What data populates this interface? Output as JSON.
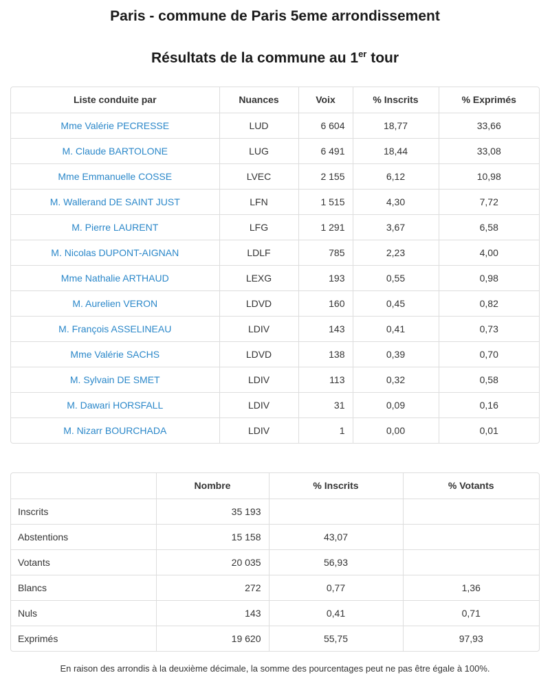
{
  "header": {
    "title": "Paris - commune de Paris 5eme arrondissement",
    "subtitle_prefix": "Résultats de la commune au 1",
    "subtitle_sup": "er",
    "subtitle_suffix": " tour"
  },
  "colors": {
    "link_blue": "#2a87c9",
    "border_gray": "#dddddd",
    "text": "#333333"
  },
  "tables": {
    "candidates": {
      "headers": [
        "Liste conduite par",
        "Nuances",
        "Voix",
        "% Inscrits",
        "% Exprimés"
      ],
      "rows": [
        {
          "name": "Mme Valérie PECRESSE",
          "nuance": "LUD",
          "voix": "6 604",
          "pct_inscrits": "18,77",
          "pct_exprimes": "33,66"
        },
        {
          "name": "M. Claude BARTOLONE",
          "nuance": "LUG",
          "voix": "6 491",
          "pct_inscrits": "18,44",
          "pct_exprimes": "33,08"
        },
        {
          "name": "Mme Emmanuelle COSSE",
          "nuance": "LVEC",
          "voix": "2 155",
          "pct_inscrits": "6,12",
          "pct_exprimes": "10,98"
        },
        {
          "name": "M. Wallerand DE SAINT JUST",
          "nuance": "LFN",
          "voix": "1 515",
          "pct_inscrits": "4,30",
          "pct_exprimes": "7,72"
        },
        {
          "name": "M. Pierre LAURENT",
          "nuance": "LFG",
          "voix": "1 291",
          "pct_inscrits": "3,67",
          "pct_exprimes": "6,58"
        },
        {
          "name": "M. Nicolas DUPONT-AIGNAN",
          "nuance": "LDLF",
          "voix": "785",
          "pct_inscrits": "2,23",
          "pct_exprimes": "4,00"
        },
        {
          "name": "Mme Nathalie ARTHAUD",
          "nuance": "LEXG",
          "voix": "193",
          "pct_inscrits": "0,55",
          "pct_exprimes": "0,98"
        },
        {
          "name": "M. Aurelien VERON",
          "nuance": "LDVD",
          "voix": "160",
          "pct_inscrits": "0,45",
          "pct_exprimes": "0,82"
        },
        {
          "name": "M. François ASSELINEAU",
          "nuance": "LDIV",
          "voix": "143",
          "pct_inscrits": "0,41",
          "pct_exprimes": "0,73"
        },
        {
          "name": "Mme Valérie SACHS",
          "nuance": "LDVD",
          "voix": "138",
          "pct_inscrits": "0,39",
          "pct_exprimes": "0,70"
        },
        {
          "name": "M. Sylvain DE SMET",
          "nuance": "LDIV",
          "voix": "113",
          "pct_inscrits": "0,32",
          "pct_exprimes": "0,58"
        },
        {
          "name": "M. Dawari HORSFALL",
          "nuance": "LDIV",
          "voix": "31",
          "pct_inscrits": "0,09",
          "pct_exprimes": "0,16"
        },
        {
          "name": "M. Nizarr BOURCHADA",
          "nuance": "LDIV",
          "voix": "1",
          "pct_inscrits": "0,00",
          "pct_exprimes": "0,01"
        }
      ]
    },
    "participation": {
      "headers": [
        "",
        "Nombre",
        "% Inscrits",
        "% Votants"
      ],
      "rows": [
        {
          "label": "Inscrits",
          "nombre": "35 193",
          "pct_inscrits": "",
          "pct_votants": ""
        },
        {
          "label": "Abstentions",
          "nombre": "15 158",
          "pct_inscrits": "43,07",
          "pct_votants": ""
        },
        {
          "label": "Votants",
          "nombre": "20 035",
          "pct_inscrits": "56,93",
          "pct_votants": ""
        },
        {
          "label": "Blancs",
          "nombre": "272",
          "pct_inscrits": "0,77",
          "pct_votants": "1,36"
        },
        {
          "label": "Nuls",
          "nombre": "143",
          "pct_inscrits": "0,41",
          "pct_votants": "0,71"
        },
        {
          "label": "Exprimés",
          "nombre": "19 620",
          "pct_inscrits": "55,75",
          "pct_votants": "97,93"
        }
      ]
    }
  },
  "footer": {
    "note": "En raison des arrondis à la deuxième décimale, la somme des pourcentages peut ne pas être égale à 100%."
  }
}
